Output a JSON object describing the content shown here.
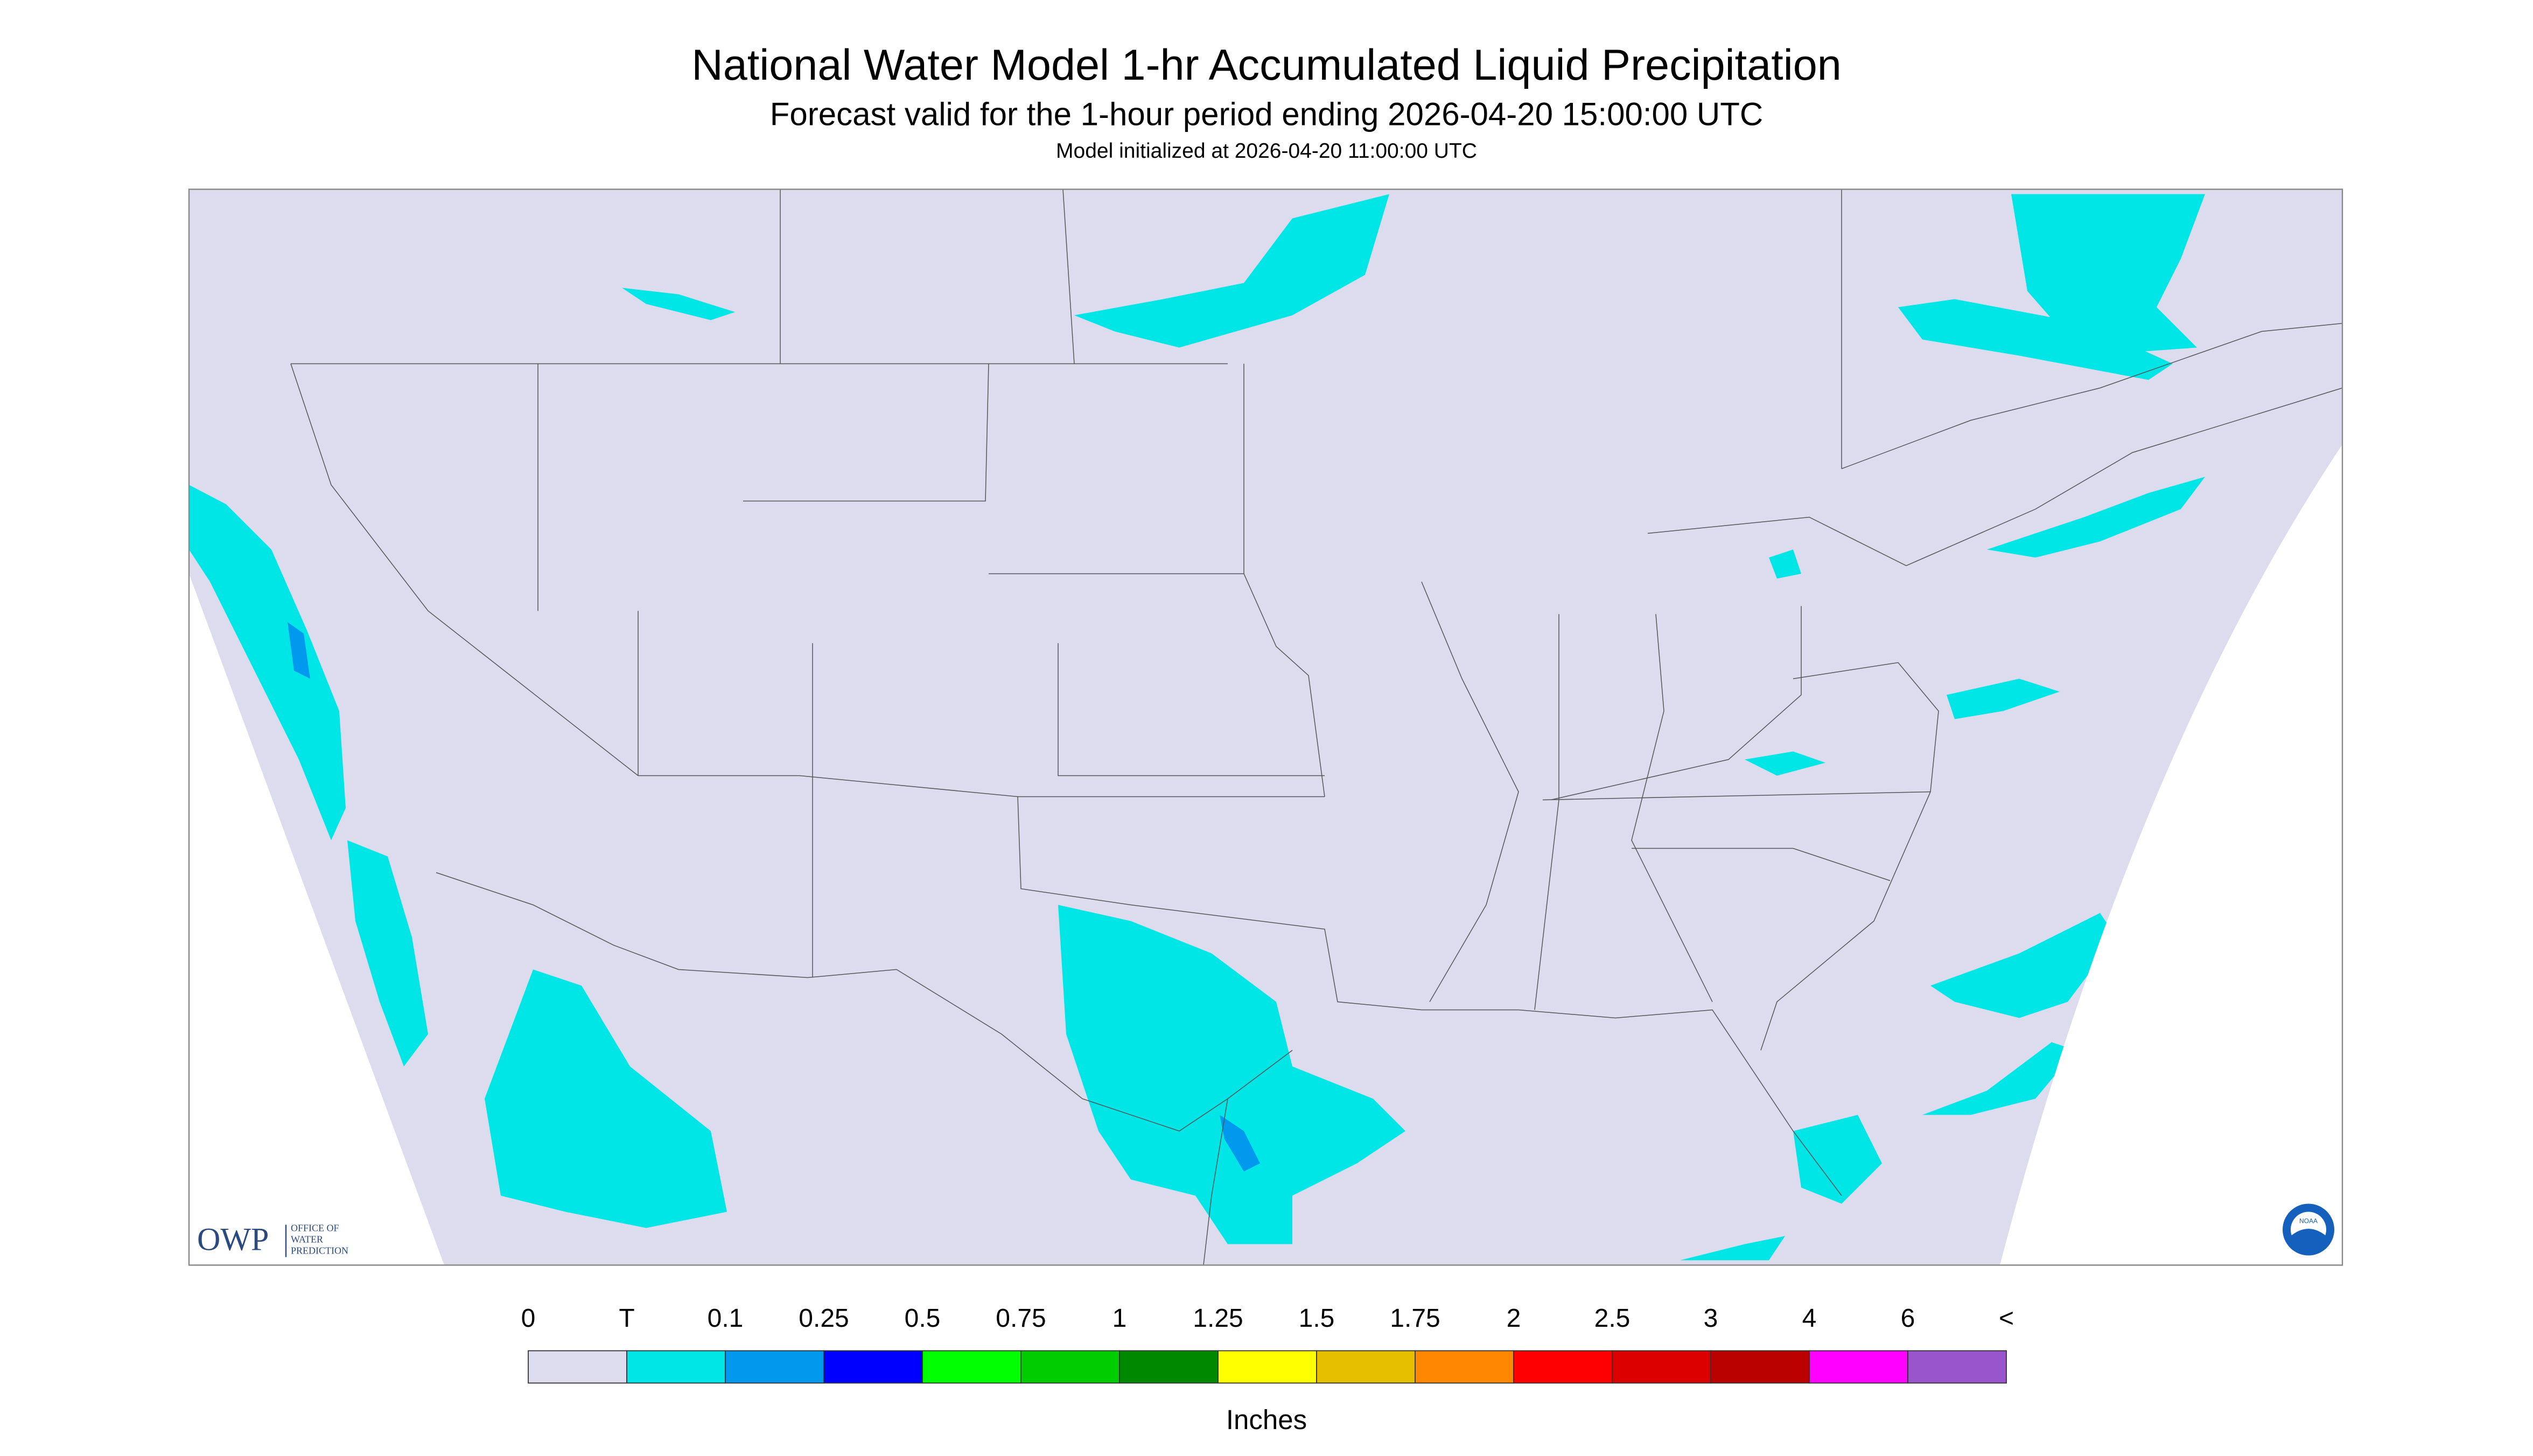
{
  "header": {
    "title": "National Water Model 1-hr Accumulated Liquid Precipitation",
    "subtitle": "Forecast valid for the 1-hour period ending 2026-04-20 15:00:00 UTC",
    "initialized": "Model initialized at 2026-04-20 11:00:00 UTC"
  },
  "legend": {
    "labels": [
      "0",
      "T",
      "0.1",
      "0.25",
      "0.5",
      "0.75",
      "1",
      "1.25",
      "1.5",
      "1.75",
      "2",
      "2.5",
      "3",
      "4",
      "6",
      "<"
    ],
    "colors": [
      "#dcdcee",
      "#00e5e5",
      "#0099ee",
      "#0000ff",
      "#00ff00",
      "#00cc00",
      "#008800",
      "#ffff00",
      "#e6c000",
      "#ff8800",
      "#ff0000",
      "#dd0000",
      "#bb0000",
      "#ff00ff",
      "#9955cc"
    ],
    "unit": "Inches"
  },
  "logos": {
    "owp": "OWP",
    "owp_text": [
      "OFFICE OF",
      "WATER",
      "PREDICTION"
    ],
    "noaa": "NOAA"
  }
}
